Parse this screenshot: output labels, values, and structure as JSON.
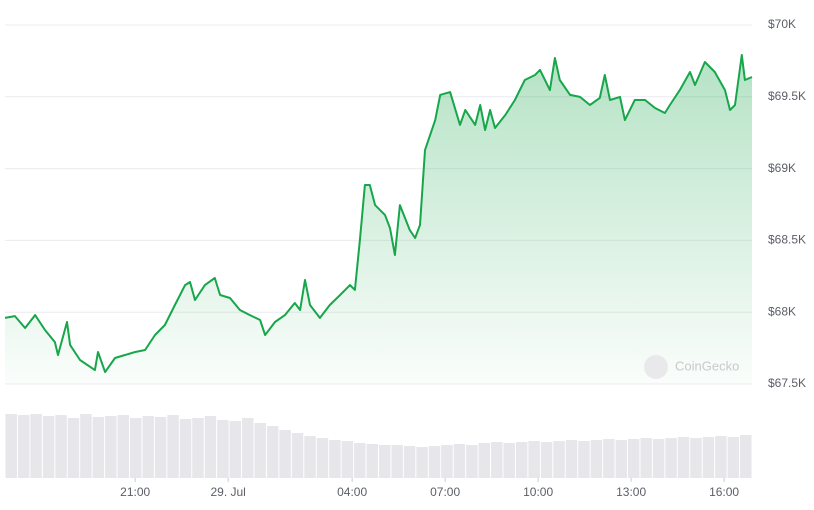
{
  "chart_data": {
    "type": "area",
    "watermark": "CoinGecko",
    "x": [
      16.8,
      17.12,
      17.45,
      17.77,
      18.09,
      18.41,
      18.51,
      18.8,
      18.9,
      19.22,
      19.7,
      19.8,
      20.03,
      20.35,
      20.67,
      21.0,
      21.32,
      21.64,
      21.96,
      22.28,
      22.61,
      22.77,
      22.93,
      23.25,
      23.57,
      23.74,
      24.06,
      24.38,
      24.7,
      25.03,
      25.19,
      25.51,
      25.83,
      26.15,
      26.32,
      26.48,
      26.64,
      26.96,
      27.28,
      27.61,
      27.93,
      28.09,
      28.25,
      28.41,
      28.57,
      28.74,
      29.06,
      29.22,
      29.38,
      29.54,
      29.86,
      30.03,
      30.19,
      30.35,
      30.68,
      30.84,
      31.16,
      31.48,
      31.65,
      31.97,
      32.13,
      32.29,
      32.45,
      32.61,
      32.94,
      33.25,
      33.57,
      33.9,
      34.06,
      34.38,
      34.54,
      34.7,
      35.03,
      35.35,
      35.67,
      35.99,
      36.15,
      36.32,
      36.64,
      36.8,
      37.12,
      37.45,
      37.77,
      38.09,
      38.25,
      38.57,
      38.9,
      39.06,
      39.38,
      39.7,
      40.03,
      40.19,
      40.35,
      40.57,
      40.67,
      40.9
    ],
    "series": [
      {
        "color": "#17a64a",
        "values": [
          67960,
          67973,
          67890,
          67980,
          67876,
          67792,
          67702,
          67932,
          67772,
          67667,
          67597,
          67723,
          67583,
          67681,
          67702,
          67723,
          67737,
          67841,
          67911,
          68050,
          68189,
          68210,
          68085,
          68189,
          68238,
          68120,
          68099,
          68015,
          67980,
          67946,
          67841,
          67932,
          67980,
          68064,
          68015,
          68224,
          68050,
          67960,
          68050,
          68120,
          68189,
          68155,
          68503,
          68886,
          68886,
          68746,
          68677,
          68586,
          68398,
          68746,
          68572,
          68517,
          68607,
          69129,
          69338,
          69513,
          69533,
          69304,
          69408,
          69304,
          69443,
          69269,
          69408,
          69283,
          69373,
          69478,
          69617,
          69652,
          69687,
          69547,
          69770,
          69617,
          69513,
          69499,
          69443,
          69492,
          69652,
          69478,
          69499,
          69338,
          69478,
          69478,
          69422,
          69387,
          69443,
          69547,
          69673,
          69582,
          69742,
          69673,
          69547,
          69408,
          69443,
          69791,
          69617,
          69638
        ]
      }
    ],
    "volume": {
      "color": "#e6e6eb",
      "ylim": [
        0,
        70
      ],
      "values": [
        64,
        63,
        64,
        62,
        63,
        60,
        64,
        61,
        62,
        63,
        60,
        62,
        61,
        63,
        59,
        60,
        62,
        58,
        57,
        60,
        55,
        52,
        48,
        45,
        42,
        40,
        38,
        37,
        35,
        34,
        33,
        33,
        32,
        31,
        32,
        33,
        34,
        33,
        35,
        36,
        35,
        36,
        37,
        36,
        37,
        38,
        37,
        38,
        39,
        38,
        39,
        40,
        39,
        40,
        41,
        40,
        41,
        42,
        41,
        43
      ]
    },
    "xlim": [
      16.8,
      40.9
    ],
    "xticks": [
      {
        "value": 21,
        "label": "21:00"
      },
      {
        "value": 24,
        "label": "29. Jul"
      },
      {
        "value": 28,
        "label": "04:00"
      },
      {
        "value": 31,
        "label": "07:00"
      },
      {
        "value": 34,
        "label": "10:00"
      },
      {
        "value": 37,
        "label": "13:00"
      },
      {
        "value": 40,
        "label": "16:00"
      }
    ],
    "ylim": [
      67500,
      70000
    ],
    "yticks": [
      {
        "value": 67500,
        "label": "$67.5K"
      },
      {
        "value": 68000,
        "label": "$68K"
      },
      {
        "value": 68500,
        "label": "$68.5K"
      },
      {
        "value": 69000,
        "label": "$69K"
      },
      {
        "value": 69500,
        "label": "$69.5K"
      },
      {
        "value": 70000,
        "label": "$70K"
      }
    ],
    "grid": true
  }
}
